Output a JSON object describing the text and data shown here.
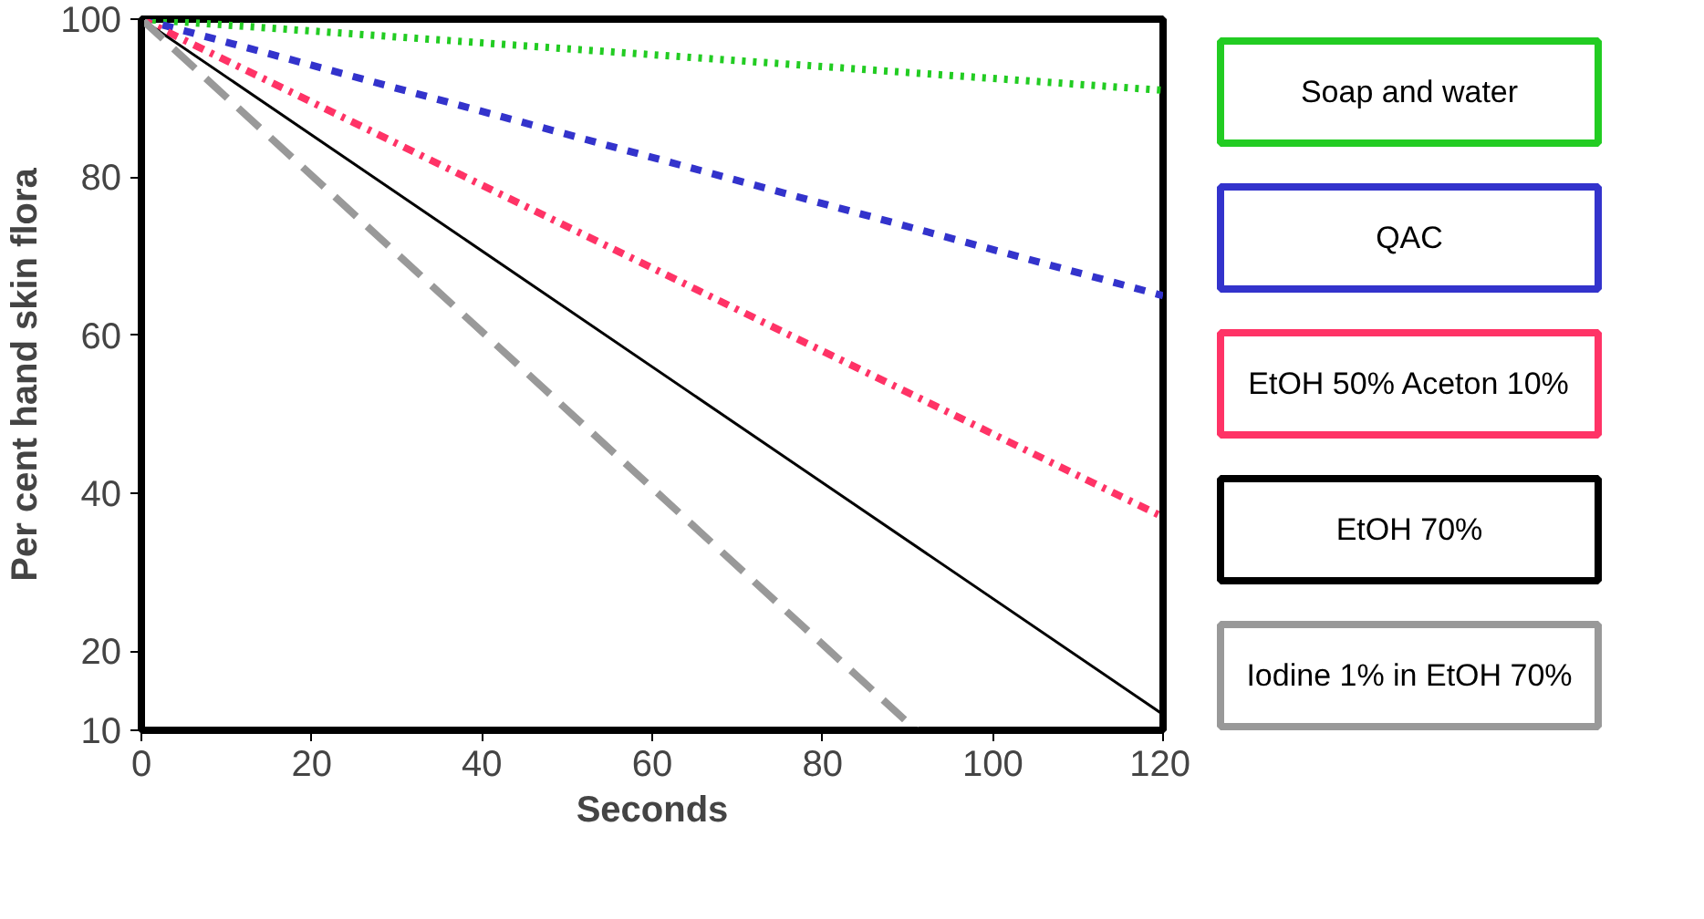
{
  "chart_data": {
    "type": "line",
    "xlabel": "Seconds",
    "ylabel": "Per cent hand skin flora",
    "xlim": [
      0,
      120
    ],
    "ylim": [
      10,
      100
    ],
    "xticks": [
      0,
      20,
      40,
      60,
      80,
      100,
      120
    ],
    "yticks": [
      10,
      20,
      40,
      60,
      80,
      100
    ],
    "grid": false,
    "marker": "none",
    "series": [
      {
        "name": "Soap and water",
        "color": "#22cc22",
        "x": [
          0,
          120
        ],
        "values": [
          100,
          91
        ],
        "line_style": "dotted"
      },
      {
        "name": "QAC",
        "color": "#3333cc",
        "x": [
          0,
          120
        ],
        "values": [
          100,
          65
        ],
        "line_style": "dashed"
      },
      {
        "name": "EtOH 50% Aceton 10%",
        "color": "#ff3366",
        "x": [
          0,
          120
        ],
        "values": [
          100,
          37
        ],
        "line_style": "dashdot"
      },
      {
        "name": "EtOH 70%",
        "color": "#000000",
        "x": [
          0,
          120
        ],
        "values": [
          100,
          12
        ],
        "line_style": "solid"
      },
      {
        "name": "Iodine 1% in EtOH 70%",
        "color": "#999999",
        "x": [
          0,
          91
        ],
        "values": [
          100,
          10
        ],
        "line_style": "longdash"
      }
    ]
  }
}
